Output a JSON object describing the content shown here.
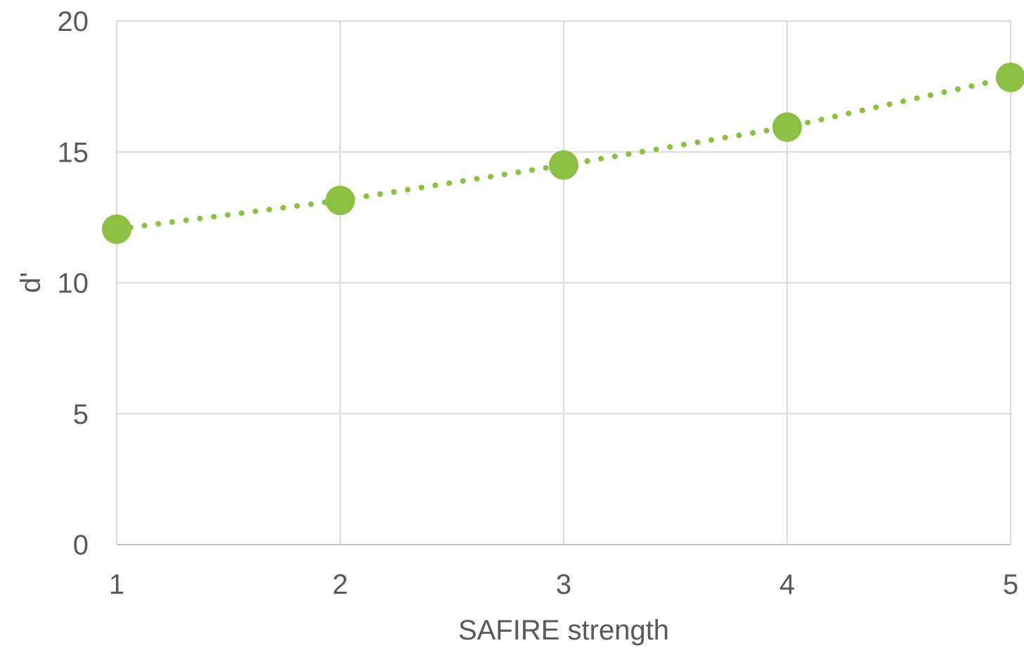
{
  "chart_data": {
    "type": "line",
    "title": "",
    "xlabel": "SAFIRE strength",
    "ylabel": "d'",
    "x": [
      1,
      2,
      3,
      4,
      5
    ],
    "series": [
      {
        "values": [
          12.05,
          13.15,
          14.5,
          15.95,
          17.85
        ],
        "color": "#8BC043",
        "line_style": "dotted",
        "marker": "circle"
      }
    ],
    "xlim": [
      1,
      5
    ],
    "ylim": [
      0,
      20
    ],
    "xticks": [
      "1",
      "2",
      "3",
      "4",
      "5"
    ],
    "yticks": [
      "0",
      "5",
      "10",
      "15",
      "20"
    ],
    "yticks_values": [
      0,
      5,
      10,
      15,
      20
    ],
    "grid": true,
    "grid_color": "#D9D9D9",
    "axis_color": "#BFBFBF",
    "text_color": "#595959"
  }
}
